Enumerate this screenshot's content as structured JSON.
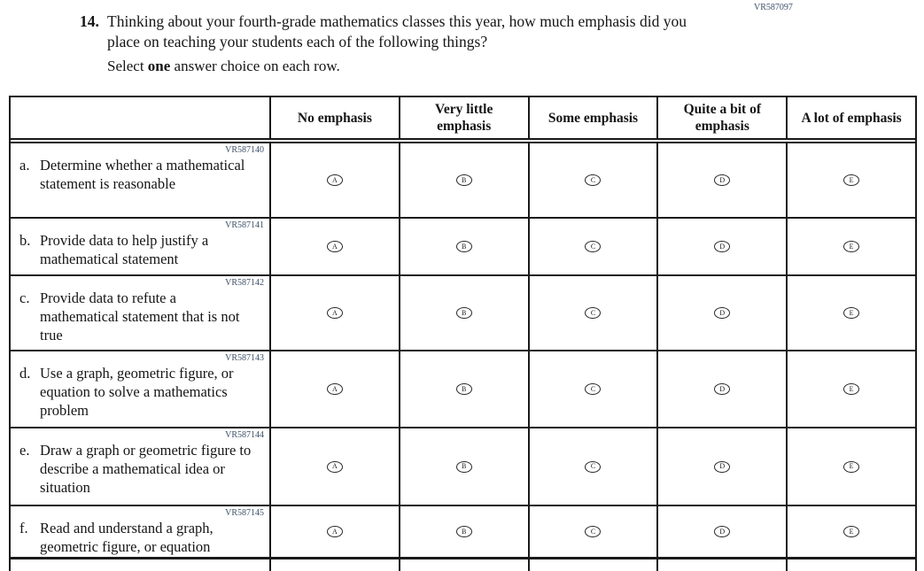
{
  "header": {
    "form_code": "VR587097"
  },
  "question": {
    "number": "14.",
    "text": "Thinking about your fourth-grade mathematics classes this year, how much emphasis did you place on teaching your students each of the following things?",
    "instruction_prefix": "Select ",
    "instruction_bold": "one",
    "instruction_suffix": " answer choice on each row."
  },
  "table": {
    "column_headers": [
      "No emphasis",
      "Very little emphasis",
      "Some emphasis",
      "Quite a bit of emphasis",
      "A lot of emphasis"
    ],
    "options": [
      "A",
      "B",
      "C",
      "D",
      "E"
    ],
    "rows": [
      {
        "label": "a.",
        "code": "VR587140",
        "text": "Determine whether a mathematical statement is reasonable"
      },
      {
        "label": "b.",
        "code": "VR587141",
        "text": "Provide data to help justify a mathematical statement"
      },
      {
        "label": "c.",
        "code": "VR587142",
        "text": "Provide data to refute a mathematical statement that is not true"
      },
      {
        "label": "d.",
        "code": "VR587143",
        "text": "Use a graph, geometric figure, or equation to solve a mathematics problem"
      },
      {
        "label": "e.",
        "code": "VR587144",
        "text": "Draw a graph or geometric figure to describe a mathematical idea or situation"
      },
      {
        "label": "f.",
        "code": "VR587145",
        "text": "Read and understand a graph, geometric figure, or equation"
      }
    ]
  }
}
